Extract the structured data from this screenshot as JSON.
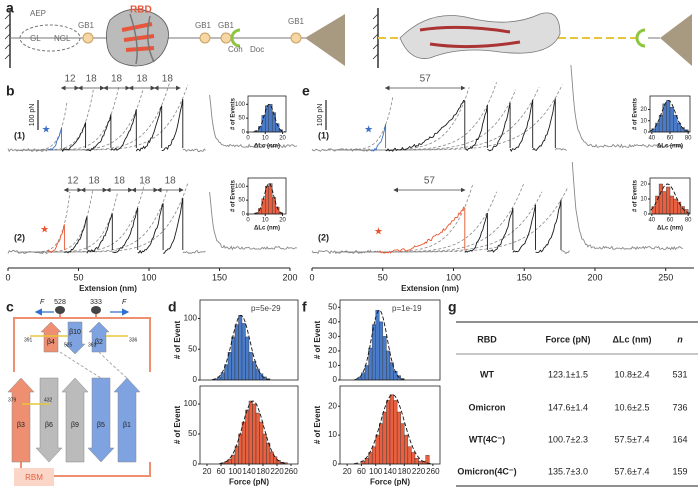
{
  "panel_labels": [
    "a",
    "b",
    "c",
    "d",
    "e",
    "f",
    "g"
  ],
  "schematic": {
    "labels": [
      "AEP",
      "GL",
      "NGL",
      "GB1",
      "RBD",
      "GB1",
      "GB1",
      "Coh",
      "Doc",
      "GB1"
    ]
  },
  "topology": {
    "labels": [
      "F",
      "528",
      "333",
      "F",
      "β4",
      "β10",
      "β2",
      "391",
      "525",
      "361",
      "336",
      "β3",
      "β6",
      "β9",
      "β5",
      "β1",
      "379",
      "432",
      "RBM"
    ]
  },
  "chart_data": [
    {
      "type": "line",
      "xlim": [
        0,
        200
      ],
      "xticks": [
        0,
        50,
        100,
        150,
        200
      ],
      "xlabel": "Extension (nm)",
      "scale_bar": "100 pN",
      "trace_labels": [
        "(1)",
        "(2)"
      ],
      "contour_labels": [
        [
          12,
          18,
          18,
          18,
          18
        ],
        [
          12,
          18,
          18,
          18,
          18
        ]
      ]
    },
    {
      "type": "line",
      "xlim": [
        0,
        270
      ],
      "xticks": [
        0,
        50,
        100,
        150,
        200,
        250
      ],
      "xlabel": "Extension (nm)",
      "scale_bar": "100 pN",
      "trace_labels": [
        "(1)",
        "(2)"
      ],
      "contour_labels": [
        [
          57
        ],
        [
          57
        ]
      ]
    },
    {
      "type": "histogram",
      "bins": [
        4,
        6,
        8,
        10,
        12,
        14,
        16,
        18,
        20
      ],
      "counts": [
        5,
        20,
        60,
        95,
        100,
        70,
        30,
        8
      ],
      "color": "#4a7bc8",
      "xlim": [
        0,
        22
      ],
      "xticks": [
        0,
        10,
        20
      ],
      "ylim": [
        0,
        130
      ],
      "yticks": [
        0,
        50,
        100
      ],
      "xlabel": "ΔLc (nm)",
      "ylabel": "# of Events"
    },
    {
      "type": "histogram",
      "bins": [
        4,
        6,
        8,
        10,
        12,
        14,
        16,
        18,
        20
      ],
      "counts": [
        4,
        20,
        55,
        100,
        110,
        60,
        25,
        5
      ],
      "color": "#e8603f",
      "xlim": [
        0,
        22
      ],
      "xticks": [
        0,
        10,
        20
      ],
      "ylim": [
        0,
        130
      ],
      "yticks": [
        0,
        50,
        100
      ],
      "xlabel": "ΔLc (nm)",
      "ylabel": "# of Events"
    },
    {
      "type": "histogram",
      "bins": [
        40,
        44,
        48,
        52,
        56,
        60,
        64,
        68,
        72,
        76,
        80
      ],
      "counts": [
        3,
        8,
        15,
        25,
        28,
        22,
        15,
        8,
        4,
        2
      ],
      "color": "#4a7bc8",
      "xlim": [
        38,
        82
      ],
      "xticks": [
        40,
        60,
        80
      ],
      "ylim": [
        0,
        32
      ],
      "yticks": [
        0,
        10,
        20
      ],
      "xlabel": "ΔLc (nm)",
      "ylabel": "# of Events"
    },
    {
      "type": "histogram",
      "bins": [
        40,
        44,
        48,
        52,
        56,
        60,
        64,
        68,
        72,
        76,
        80
      ],
      "counts": [
        5,
        12,
        20,
        15,
        18,
        12,
        10,
        8,
        5,
        3
      ],
      "color": "#e8603f",
      "xlim": [
        38,
        82
      ],
      "xticks": [
        40,
        60,
        80
      ],
      "ylim": [
        0,
        24
      ],
      "yticks": [
        0,
        10,
        20
      ],
      "xlabel": "ΔLc (nm)",
      "ylabel": "# of Events"
    },
    {
      "type": "histogram",
      "bins": [
        40,
        50,
        60,
        70,
        80,
        90,
        100,
        110,
        120,
        130,
        140,
        150,
        160,
        170,
        180,
        190,
        200
      ],
      "counts": [
        2,
        5,
        12,
        25,
        45,
        70,
        90,
        105,
        92,
        70,
        45,
        30,
        18,
        10,
        5,
        2
      ],
      "color": "#4a7bc8",
      "xlim": [
        0,
        280
      ],
      "ylim": [
        0,
        130
      ],
      "yticks": [
        0,
        50,
        100
      ],
      "ylabel": "# of Event",
      "annotation": "p=5e-29"
    },
    {
      "type": "histogram",
      "bins": [
        60,
        70,
        80,
        90,
        100,
        110,
        120,
        130,
        140,
        150,
        160,
        170,
        180,
        190,
        200,
        210,
        220,
        230,
        240,
        250
      ],
      "counts": [
        2,
        4,
        8,
        15,
        30,
        50,
        70,
        90,
        105,
        100,
        85,
        70,
        50,
        35,
        20,
        12,
        6,
        3,
        2
      ],
      "color": "#e8603f",
      "xlim": [
        0,
        280
      ],
      "xticks": [
        20,
        60,
        100,
        140,
        180,
        220,
        260
      ],
      "ylim": [
        0,
        130
      ],
      "yticks": [
        0,
        50,
        100
      ],
      "xlabel": "Force (pN)",
      "ylabel": "# of Event"
    },
    {
      "type": "histogram",
      "bins": [
        50,
        60,
        70,
        80,
        90,
        100,
        110,
        120,
        130,
        140,
        150,
        160,
        170,
        180
      ],
      "counts": [
        2,
        5,
        10,
        22,
        38,
        48,
        40,
        30,
        20,
        12,
        6,
        3,
        1
      ],
      "color": "#4a7bc8",
      "xlim": [
        0,
        280
      ],
      "ylim": [
        0,
        55
      ],
      "yticks": [
        0,
        10,
        20,
        30,
        40,
        50
      ],
      "ylabel": "# of Event",
      "annotation": "p=1e-19"
    },
    {
      "type": "histogram",
      "bins": [
        60,
        70,
        80,
        90,
        100,
        110,
        120,
        130,
        140,
        150,
        160,
        170,
        180,
        190,
        200,
        210,
        220,
        230,
        240,
        250
      ],
      "counts": [
        1,
        2,
        4,
        6,
        10,
        14,
        18,
        22,
        24,
        22,
        18,
        14,
        10,
        6,
        4,
        2,
        1,
        1,
        3
      ],
      "color": "#e8603f",
      "xlim": [
        0,
        280
      ],
      "xticks": [
        20,
        60,
        100,
        140,
        180,
        220,
        260
      ],
      "ylim": [
        0,
        27
      ],
      "yticks": [
        0,
        10,
        20
      ],
      "xlabel": "Force (pN)",
      "ylabel": "# of Event"
    }
  ],
  "table": {
    "header": [
      "RBD",
      "Force (pN)",
      "ΔLc (nm)",
      "n"
    ],
    "rows": [
      [
        "WT",
        "123.1±1.5",
        "10.8±2.4",
        531
      ],
      [
        "Omicron",
        "147.6±1.4",
        "10.6±2.5",
        736
      ],
      [
        "WT(4C⁻)",
        "100.7±2.3",
        "57.5±7.4",
        164
      ],
      [
        "Omicron(4C⁻)",
        "135.7±3.0",
        "57.6±7.4",
        159
      ]
    ]
  }
}
